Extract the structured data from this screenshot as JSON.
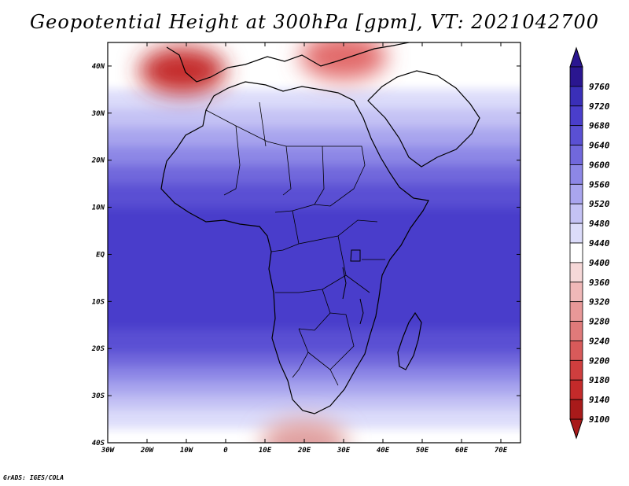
{
  "title": "Geopotential Height at 300hPa [gpm], VT: 2021042700",
  "credit": "GrADS: IGES/COLA",
  "map": {
    "lon_range": [
      -30,
      75
    ],
    "lat_range": [
      -40,
      45
    ],
    "lon_ticks": [
      {
        "value": -30,
        "label": "30W"
      },
      {
        "value": -20,
        "label": "20W"
      },
      {
        "value": -10,
        "label": "10W"
      },
      {
        "value": 0,
        "label": "0"
      },
      {
        "value": 10,
        "label": "10E"
      },
      {
        "value": 20,
        "label": "20E"
      },
      {
        "value": 30,
        "label": "30E"
      },
      {
        "value": 40,
        "label": "40E"
      },
      {
        "value": 50,
        "label": "50E"
      },
      {
        "value": 60,
        "label": "60E"
      },
      {
        "value": 70,
        "label": "70E"
      }
    ],
    "lat_ticks": [
      {
        "value": 40,
        "label": "40N"
      },
      {
        "value": 30,
        "label": "30N"
      },
      {
        "value": 20,
        "label": "20N"
      },
      {
        "value": 10,
        "label": "10N"
      },
      {
        "value": 0,
        "label": "EQ"
      },
      {
        "value": -10,
        "label": "10S"
      },
      {
        "value": -20,
        "label": "20S"
      },
      {
        "value": -30,
        "label": "30S"
      },
      {
        "value": -40,
        "label": "40S"
      }
    ],
    "field_bands": [
      {
        "level": 9440,
        "color": "#dcdcfa"
      },
      {
        "level": 9480,
        "color": "#c4c2f4"
      },
      {
        "level": 9520,
        "color": "#a9a5ee"
      },
      {
        "level": 9560,
        "color": "#8d87e6"
      },
      {
        "level": 9600,
        "color": "#7168dc"
      },
      {
        "level": 9640,
        "color": "#5a50d3"
      },
      {
        "level": 9680,
        "color": "#4a3ecb"
      }
    ],
    "anomalies": [
      {
        "name": "iberia-low",
        "lon": -11,
        "lat": 39,
        "color": "#c42a2a"
      },
      {
        "name": "mediterranean-ridge-low",
        "lon": 30,
        "lat": 42,
        "color": "#e26a6a"
      },
      {
        "name": "southern-trough",
        "lon": 20,
        "lat": -40,
        "color": "#e0a0a0"
      }
    ]
  },
  "colorbar": {
    "levels": [
      {
        "value": "9760",
        "color": "#2a1690"
      },
      {
        "value": "9720",
        "color": "#3a2fb8"
      },
      {
        "value": "9680",
        "color": "#4a3ecb"
      },
      {
        "value": "9640",
        "color": "#5a50d3"
      },
      {
        "value": "9600",
        "color": "#7168dc"
      },
      {
        "value": "9560",
        "color": "#8d87e6"
      },
      {
        "value": "9520",
        "color": "#a9a5ee"
      },
      {
        "value": "9480",
        "color": "#c4c2f4"
      },
      {
        "value": "9440",
        "color": "#dcdcfa"
      },
      {
        "value": "9400",
        "color": "#ffffff"
      },
      {
        "value": "9360",
        "color": "#f6d8d8"
      },
      {
        "value": "9320",
        "color": "#f0b8b8"
      },
      {
        "value": "9280",
        "color": "#e89898"
      },
      {
        "value": "9240",
        "color": "#e07a7a"
      },
      {
        "value": "9200",
        "color": "#d85a5a"
      },
      {
        "value": "9180",
        "color": "#cf3e3e"
      },
      {
        "value": "9140",
        "color": "#c42a2a"
      },
      {
        "value": "9100",
        "color": "#a81a1a"
      }
    ]
  }
}
